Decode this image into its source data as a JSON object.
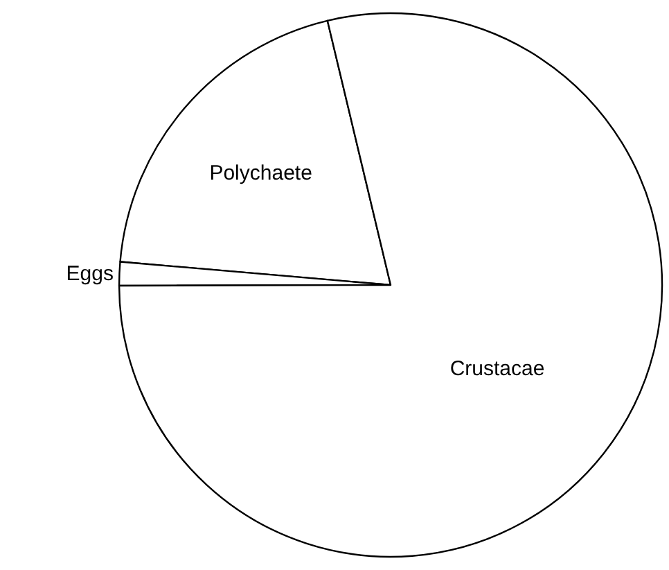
{
  "chart_data": {
    "type": "pie",
    "categories": [
      "Polychaete",
      "Eggs",
      "Crustacae"
    ],
    "values": [
      19.9,
      1.4,
      78.7
    ],
    "colors": [
      "#ffffff",
      "#ffffff",
      "#ffffff"
    ],
    "legend": false
  }
}
